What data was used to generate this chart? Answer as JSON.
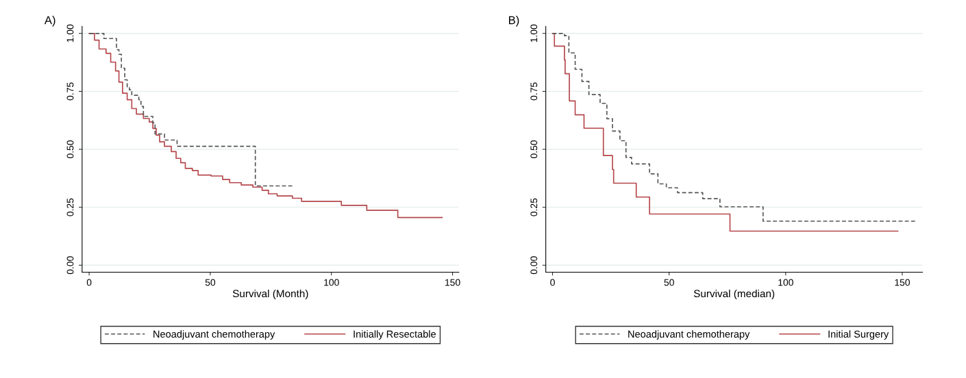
{
  "chart_data": [
    {
      "type": "step",
      "title": "A)",
      "xlabel": "Survival (Month)",
      "xlim": [
        -2.9,
        152.6
      ],
      "ylim": [
        -0.03,
        1.03
      ],
      "xticks": [
        0,
        50,
        100,
        150
      ],
      "yticks": [
        {
          "value": 0,
          "label": "0.00"
        },
        {
          "value": 0.25,
          "label": "0.25"
        },
        {
          "value": 0.5,
          "label": "0.50"
        },
        {
          "value": 0.75,
          "label": "0.75"
        },
        {
          "value": 1,
          "label": "1.00"
        }
      ],
      "grid": "y",
      "legend": "bottom",
      "series": [
        {
          "name": "Neoadjuvant chemotherapy",
          "color": "#555555",
          "line_style": "dashed",
          "x": [
            0,
            6.1,
            11.3,
            12.3,
            13.3,
            14.7,
            15.7,
            16.6,
            17.6,
            20.5,
            21.4,
            22.4,
            26.3,
            27.2,
            31.1,
            36.3,
            68.6,
            83.9
          ],
          "values": [
            1.0,
            0.978,
            0.93,
            0.91,
            0.85,
            0.8,
            0.77,
            0.757,
            0.733,
            0.714,
            0.685,
            0.642,
            0.614,
            0.566,
            0.54,
            0.513,
            0.342,
            0.342
          ]
        },
        {
          "name": "Initially Resectable",
          "color": "#b5474b",
          "line_style": "solid",
          "x": [
            0,
            2.2,
            4.1,
            7.0,
            8.9,
            10.9,
            12.3,
            13.8,
            15.7,
            17.6,
            19.5,
            22.4,
            24.8,
            26.3,
            27.7,
            29.1,
            31.1,
            33.9,
            35.9,
            37.8,
            39.7,
            42.6,
            45.0,
            50.3,
            55.1,
            58.0,
            62.8,
            67.6,
            71.4,
            74.0,
            77.6,
            83.9,
            87.7,
            104.1,
            114.6,
            127.4,
            145.7
          ],
          "values": [
            1.0,
            0.971,
            0.933,
            0.914,
            0.876,
            0.838,
            0.79,
            0.742,
            0.714,
            0.676,
            0.652,
            0.633,
            0.618,
            0.59,
            0.561,
            0.532,
            0.513,
            0.49,
            0.461,
            0.442,
            0.418,
            0.408,
            0.389,
            0.385,
            0.37,
            0.356,
            0.346,
            0.337,
            0.323,
            0.308,
            0.299,
            0.289,
            0.275,
            0.258,
            0.237,
            0.206,
            0.206
          ]
        }
      ]
    },
    {
      "type": "step",
      "title": "B)",
      "xlabel": "Survival (median)",
      "xlim": [
        -2.9,
        158.7
      ],
      "ylim": [
        -0.03,
        1.03
      ],
      "xticks": [
        0,
        50,
        100,
        150
      ],
      "yticks": [
        {
          "value": 0,
          "label": "0.00"
        },
        {
          "value": 0.25,
          "label": "0.25"
        },
        {
          "value": 0.5,
          "label": "0.50"
        },
        {
          "value": 0.75,
          "label": "0.75"
        },
        {
          "value": 1,
          "label": "1.00"
        }
      ],
      "grid": "y",
      "legend": "bottom",
      "series": [
        {
          "name": "Neoadjuvant chemotherapy",
          "color": "#555555",
          "line_style": "dashed",
          "x": [
            0,
            5.1,
            7.0,
            9.7,
            12.6,
            15.6,
            20.4,
            23.3,
            25.7,
            28.9,
            31.5,
            33.9,
            41.6,
            45.2,
            48.8,
            53.6,
            64.4,
            71.8,
            90.3,
            155.8
          ],
          "values": [
            1.0,
            0.99,
            0.916,
            0.845,
            0.793,
            0.736,
            0.698,
            0.632,
            0.579,
            0.537,
            0.465,
            0.437,
            0.394,
            0.351,
            0.334,
            0.313,
            0.287,
            0.252,
            0.19,
            0.19
          ]
        },
        {
          "name": "Initial Surgery",
          "color": "#b5474b",
          "line_style": "solid",
          "x": [
            0,
            0.8,
            5.1,
            5.4,
            7.2,
            9.7,
            13.5,
            21.8,
            25.7,
            26.2,
            35.9,
            41.6,
            76.1,
            148.1
          ],
          "values": [
            1.0,
            0.945,
            0.886,
            0.826,
            0.709,
            0.649,
            0.591,
            0.473,
            0.413,
            0.354,
            0.294,
            0.221,
            0.147,
            0.147
          ]
        }
      ]
    }
  ]
}
